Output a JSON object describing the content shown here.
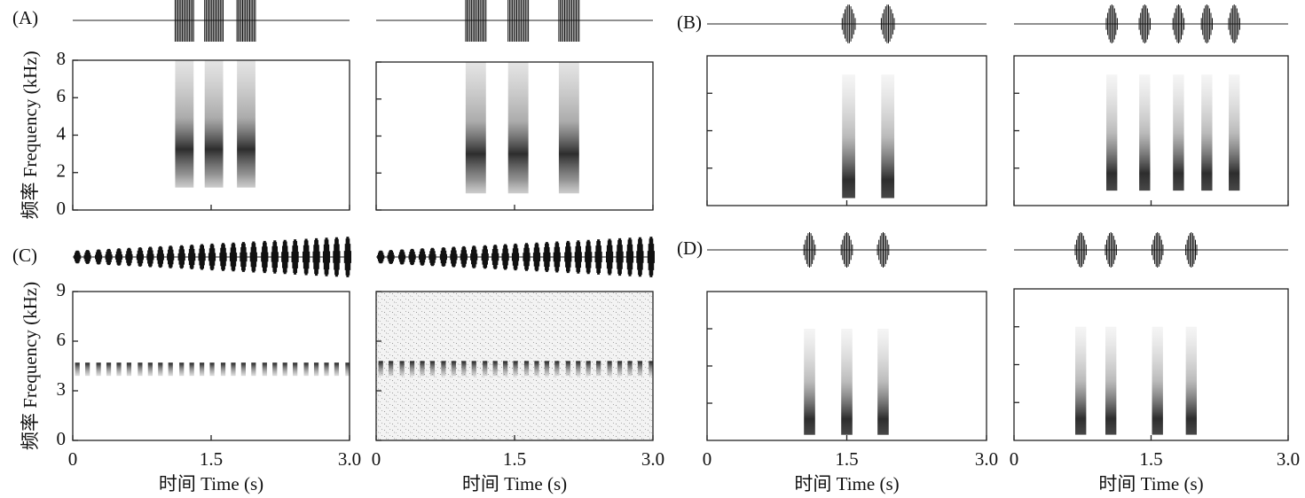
{
  "chart_data": {
    "type": "spectrogram",
    "xlim": [
      0,
      3
    ],
    "xticks": [
      0,
      1.5,
      {
        "value": 3,
        "label": "3.0"
      }
    ],
    "xlabel": "时间 Time (s)",
    "ylabel": "频率 Frequency (kHz)",
    "panels": [
      {
        "label": "(A)",
        "ylim": [
          0,
          8
        ],
        "yticks": [
          0,
          2,
          4,
          6,
          8
        ],
        "ytick_labels": true,
        "plots": [
          {
            "syllables": [
              1.21,
              1.53,
              1.88
            ],
            "syllable_duration": 0.2,
            "band": [
              1.2,
              8
            ]
          },
          {
            "syllables": [
              1.08,
              1.54,
              2.09
            ],
            "syllable_duration": 0.22,
            "band": [
              0.9,
              8
            ]
          }
        ]
      },
      {
        "label": "(B)",
        "ylim": [
          0,
          8
        ],
        "yticks": [
          2,
          4,
          6
        ],
        "ytick_labels": false,
        "plots": [
          {
            "syllables": [
              1.52,
              1.94
            ],
            "syllable_duration": 0.14,
            "band": [
              0.4,
              7
            ]
          },
          {
            "syllables": [
              1.07,
              1.43,
              1.8,
              2.11,
              2.41
            ],
            "syllable_duration": 0.12,
            "band": [
              0.8,
              7
            ]
          }
        ]
      },
      {
        "label": "(C)",
        "ylim": [
          0,
          9
        ],
        "yticks": [
          0,
          3,
          6,
          9
        ],
        "ytick_labels": true,
        "plots": [
          {
            "syllables": [
              0.05,
              0.16,
              0.28,
              0.39,
              0.5,
              0.61,
              0.73,
              0.84,
              0.95,
              1.06,
              1.18,
              1.29,
              1.4,
              1.51,
              1.63,
              1.74,
              1.85,
              1.96,
              2.08,
              2.19,
              2.3,
              2.41,
              2.53,
              2.64,
              2.75,
              2.86,
              2.98
            ],
            "syllable_duration": 0.05,
            "band": [
              3.9,
              4.7
            ]
          },
          {
            "syllables": [
              0.05,
              0.16,
              0.28,
              0.39,
              0.5,
              0.61,
              0.73,
              0.84,
              0.95,
              1.06,
              1.18,
              1.29,
              1.4,
              1.51,
              1.63,
              1.74,
              1.85,
              1.96,
              2.08,
              2.19,
              2.3,
              2.41,
              2.53,
              2.64,
              2.75,
              2.86,
              2.98
            ],
            "syllable_duration": 0.05,
            "band": [
              3.9,
              4.8
            ],
            "background_noise": true
          }
        ]
      },
      {
        "label": "(D)",
        "ylim": [
          0,
          8
        ],
        "yticks": [
          2,
          4,
          6
        ],
        "ytick_labels": false,
        "plots": [
          {
            "syllables": [
              1.1,
              1.5,
              1.89
            ],
            "syllable_duration": 0.12,
            "band": [
              0.3,
              6
            ]
          },
          {
            "syllables": [
              0.73,
              1.06,
              1.57,
              1.94
            ],
            "syllable_duration": 0.12,
            "band": [
              0.3,
              6
            ]
          }
        ]
      }
    ]
  }
}
